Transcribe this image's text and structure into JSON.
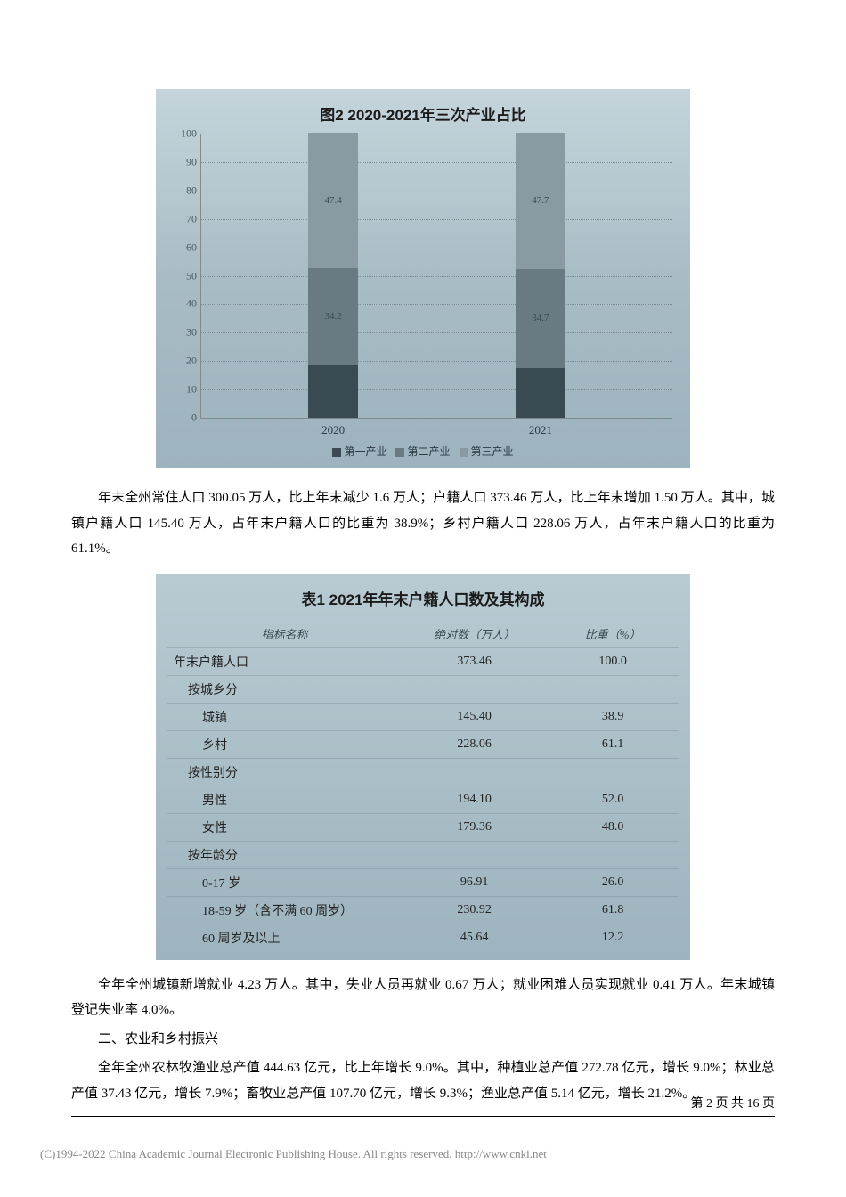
{
  "chart": {
    "title": "图2  2020-2021年三次产业占比",
    "type": "stacked-bar",
    "ylim": [
      0,
      100
    ],
    "ytick_step": 10,
    "yticks": [
      0,
      10,
      20,
      30,
      40,
      50,
      60,
      70,
      80,
      90,
      100
    ],
    "categories": [
      "2020",
      "2021"
    ],
    "series": [
      {
        "name": "第一产业",
        "color": "#3a4a52"
      },
      {
        "name": "第二产业",
        "color": "#6a7a82"
      },
      {
        "name": "第三产业",
        "color": "#8a9aa2"
      }
    ],
    "data": {
      "2020": [
        18.4,
        34.2,
        47.4
      ],
      "2021": [
        17.6,
        34.7,
        47.7
      ]
    },
    "bar_positions_pct": [
      28,
      72
    ],
    "legend_prefix": "■",
    "background_gradient": [
      "#c5d4db",
      "#9db3bd"
    ],
    "grid_color": "#7a8a92"
  },
  "para1": "年末全州常住人口 300.05 万人，比上年末减少 1.6 万人；户籍人口 373.46 万人，比上年末增加 1.50 万人。其中，城镇户籍人口 145.40 万人，占年末户籍人口的比重为 38.9%；乡村户籍人口 228.06 万人，占年末户籍人口的比重为 61.1%。",
  "table": {
    "title": "表1   2021年年末户籍人口数及其构成",
    "columns": [
      "指标名称",
      "绝对数（万人）",
      "比重（%）"
    ],
    "rows": [
      {
        "label": "年末户籍人口",
        "v1": "373.46",
        "v2": "100.0",
        "indent": 0
      },
      {
        "label": "按城乡分",
        "v1": "",
        "v2": "",
        "indent": 1
      },
      {
        "label": "城镇",
        "v1": "145.40",
        "v2": "38.9",
        "indent": 2
      },
      {
        "label": "乡村",
        "v1": "228.06",
        "v2": "61.1",
        "indent": 2
      },
      {
        "label": "按性别分",
        "v1": "",
        "v2": "",
        "indent": 1
      },
      {
        "label": "男性",
        "v1": "194.10",
        "v2": "52.0",
        "indent": 2
      },
      {
        "label": "女性",
        "v1": "179.36",
        "v2": "48.0",
        "indent": 2
      },
      {
        "label": "按年龄分",
        "v1": "",
        "v2": "",
        "indent": 1
      },
      {
        "label": "0-17 岁",
        "v1": "96.91",
        "v2": "26.0",
        "indent": 2
      },
      {
        "label": "18-59 岁（含不满 60 周岁）",
        "v1": "230.92",
        "v2": "61.8",
        "indent": 2
      },
      {
        "label": "60 周岁及以上",
        "v1": "45.64",
        "v2": "12.2",
        "indent": 2
      }
    ],
    "header_color": "#3a4a52",
    "row_border_color": "rgba(120,140,148,0.4)"
  },
  "para2": "全年全州城镇新增就业 4.23 万人。其中，失业人员再就业 0.67 万人；就业困难人员实现就业 0.41 万人。年末城镇登记失业率 4.0%。",
  "section_heading": "二、农业和乡村振兴",
  "para3": "全年全州农林牧渔业总产值 444.63 亿元，比上年增长 9.0%。其中，种植业总产值 272.78 亿元，增长 9.0%；林业总产值 37.43 亿元，增长 7.9%；畜牧业总产值 107.70 亿元，增长 9.3%；渔业总产值 5.14 亿元，增长 21.2%。",
  "footer": "第 2 页 共 16 页",
  "copyright": "(C)1994-2022 China Academic Journal Electronic Publishing House. All rights reserved.   http://www.cnki.net"
}
